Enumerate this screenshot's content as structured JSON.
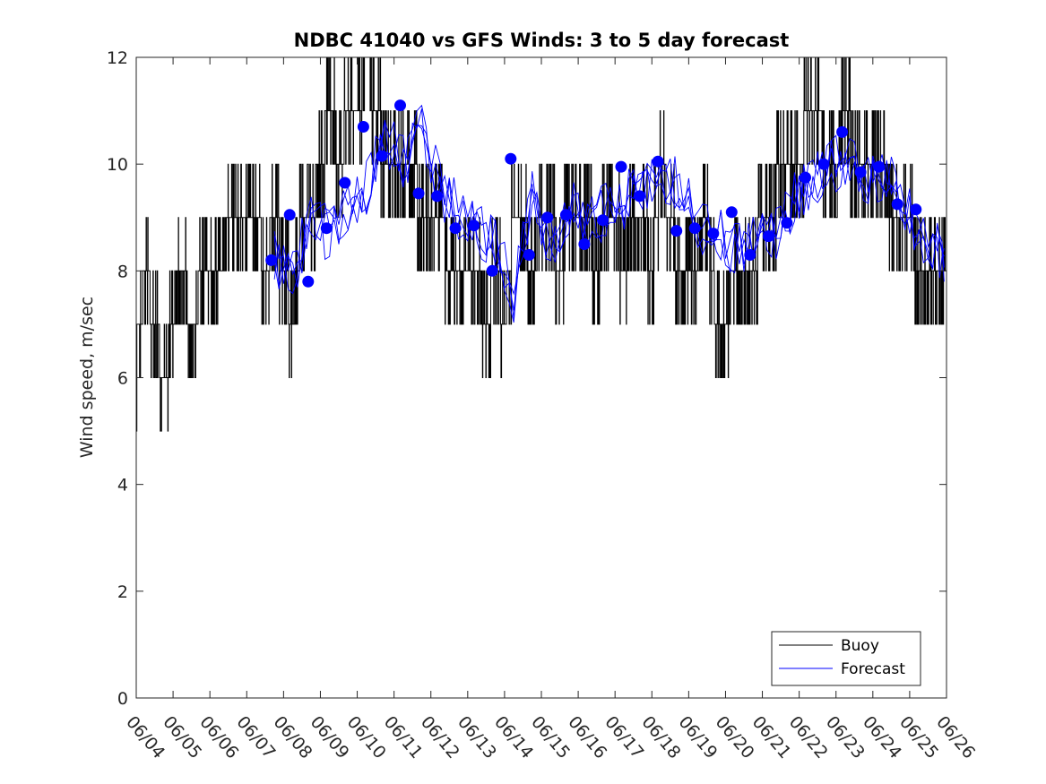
{
  "chart_data": {
    "type": "line",
    "title": "NDBC 41040 vs GFS Winds: 3 to 5 day forecast",
    "xlabel": "",
    "ylabel": "Wind speed, m/sec",
    "xlim": [
      "06/04",
      "06/26"
    ],
    "ylim": [
      0,
      12
    ],
    "x_tick_labels": [
      "06/04",
      "06/05",
      "06/06",
      "06/07",
      "06/08",
      "06/09",
      "06/10",
      "06/11",
      "06/12",
      "06/13",
      "06/14",
      "06/15",
      "06/16",
      "06/17",
      "06/18",
      "06/19",
      "06/20",
      "06/21",
      "06/22",
      "06/23",
      "06/24",
      "06/25",
      "06/26"
    ],
    "y_ticks": [
      0,
      2,
      4,
      6,
      8,
      10,
      12
    ],
    "grid": false,
    "legend": {
      "position": "bottom-right",
      "entries": [
        "Buoy",
        "Forecast"
      ]
    },
    "colors": {
      "buoy": "#000000",
      "forecast": "#0000ff",
      "markers": "#0000ff"
    },
    "series": [
      {
        "name": "Buoy",
        "style": "step-line",
        "x": [
          "06/04 00:00",
          "06/04 06:00",
          "06/04 12:00",
          "06/04 18:00",
          "06/05 00:00",
          "06/05 06:00",
          "06/05 12:00",
          "06/05 18:00",
          "06/06 00:00",
          "06/06 06:00",
          "06/06 12:00",
          "06/06 18:00",
          "06/07 00:00",
          "06/07 06:00",
          "06/07 12:00",
          "06/07 18:00",
          "06/08 00:00",
          "06/08 06:00",
          "06/08 12:00",
          "06/08 18:00",
          "06/09 00:00",
          "06/09 06:00",
          "06/09 12:00",
          "06/09 18:00",
          "06/10 00:00",
          "06/10 06:00",
          "06/10 12:00",
          "06/10 18:00",
          "06/11 00:00",
          "06/11 06:00",
          "06/11 12:00",
          "06/11 18:00",
          "06/12 00:00",
          "06/12 06:00",
          "06/12 12:00",
          "06/12 18:00",
          "06/13 00:00",
          "06/13 06:00",
          "06/13 12:00",
          "06/13 18:00",
          "06/14 00:00",
          "06/14 06:00",
          "06/14 12:00",
          "06/14 18:00",
          "06/15 00:00",
          "06/15 06:00",
          "06/15 12:00",
          "06/15 18:00",
          "06/16 00:00",
          "06/16 06:00",
          "06/16 12:00",
          "06/16 18:00",
          "06/17 00:00",
          "06/17 06:00",
          "06/17 12:00",
          "06/17 18:00",
          "06/18 00:00",
          "06/18 06:00",
          "06/18 12:00",
          "06/18 18:00",
          "06/19 00:00",
          "06/19 06:00",
          "06/19 12:00",
          "06/19 18:00",
          "06/20 00:00",
          "06/20 06:00",
          "06/20 12:00",
          "06/20 18:00",
          "06/21 00:00",
          "06/21 06:00",
          "06/21 12:00",
          "06/21 18:00",
          "06/22 00:00",
          "06/22 06:00",
          "06/22 12:00",
          "06/22 18:00",
          "06/23 00:00",
          "06/23 06:00",
          "06/23 12:00",
          "06/23 18:00",
          "06/24 00:00",
          "06/24 06:00",
          "06/24 12:00",
          "06/24 18:00",
          "06/25 00:00",
          "06/25 06:00",
          "06/25 12:00",
          "06/25 18:00",
          "06/26 00:00"
        ],
        "values": [
          6.4,
          8,
          7,
          6,
          7,
          8,
          7,
          8,
          8,
          8,
          9,
          9,
          9,
          9,
          8,
          9,
          8,
          7,
          9,
          9,
          10,
          11,
          10,
          11,
          11,
          12,
          11,
          10,
          10,
          10,
          10,
          9,
          9,
          9,
          8,
          8,
          8,
          8,
          7,
          8,
          7,
          9,
          9,
          8,
          9,
          9,
          8,
          9,
          9,
          9,
          8,
          9,
          9,
          8,
          9,
          9,
          8,
          10,
          9,
          8,
          8,
          8,
          9,
          7,
          7,
          8,
          8,
          8,
          9,
          9,
          10,
          10,
          10,
          11,
          11,
          10,
          10,
          11,
          10,
          10,
          10,
          10,
          9,
          9,
          9,
          8,
          8,
          8,
          8
        ]
      },
      {
        "name": "Forecast",
        "style": "multiple-thin-lines",
        "x": [
          "06/07 18:00",
          "06/08 06:00",
          "06/08 18:00",
          "06/09 06:00",
          "06/09 18:00",
          "06/10 06:00",
          "06/10 18:00",
          "06/11 06:00",
          "06/11 18:00",
          "06/12 06:00",
          "06/12 18:00",
          "06/13 06:00",
          "06/13 18:00",
          "06/14 06:00",
          "06/14 18:00",
          "06/15 06:00",
          "06/15 18:00",
          "06/16 06:00",
          "06/16 18:00",
          "06/17 06:00",
          "06/17 18:00",
          "06/18 06:00",
          "06/18 18:00",
          "06/19 06:00",
          "06/19 18:00",
          "06/20 06:00",
          "06/20 18:00",
          "06/21 06:00",
          "06/21 18:00",
          "06/22 06:00",
          "06/22 18:00",
          "06/23 06:00",
          "06/23 18:00",
          "06/24 06:00",
          "06/24 18:00",
          "06/25 06:00",
          "06/25 18:00",
          "06/26 00:00"
        ],
        "values": [
          8.2,
          7.9,
          9.1,
          8.6,
          9.2,
          9.6,
          10.5,
          10.0,
          10.8,
          9.5,
          9.1,
          8.8,
          8.5,
          7.5,
          9.4,
          8.5,
          9.2,
          8.9,
          9.1,
          9.3,
          9.6,
          9.6,
          9.6,
          8.8,
          8.8,
          8.4,
          8.6,
          8.6,
          9.2,
          9.6,
          10.0,
          10.0,
          9.8,
          9.8,
          9.5,
          8.6,
          8.4,
          7.8
        ]
      },
      {
        "name": "markers",
        "style": "marker",
        "x": [
          "06/07 16:00",
          "06/08 04:00",
          "06/08 16:00",
          "06/09 04:00",
          "06/09 16:00",
          "06/10 04:00",
          "06/10 16:00",
          "06/11 04:00",
          "06/11 16:00",
          "06/12 04:00",
          "06/12 16:00",
          "06/13 04:00",
          "06/13 16:00",
          "06/14 04:00",
          "06/14 16:00",
          "06/15 04:00",
          "06/15 16:00",
          "06/16 04:00",
          "06/16 16:00",
          "06/17 04:00",
          "06/17 16:00",
          "06/18 04:00",
          "06/18 16:00",
          "06/19 04:00",
          "06/19 16:00",
          "06/20 04:00",
          "06/20 16:00",
          "06/21 04:00",
          "06/21 16:00",
          "06/22 04:00",
          "06/22 16:00",
          "06/23 04:00",
          "06/23 16:00",
          "06/24 04:00",
          "06/24 16:00",
          "06/25 04:00"
        ],
        "values": [
          8.2,
          9.05,
          7.8,
          8.8,
          9.65,
          10.7,
          10.15,
          11.1,
          9.45,
          9.4,
          8.8,
          8.85,
          8.0,
          10.1,
          8.3,
          9.0,
          9.05,
          8.5,
          8.95,
          9.95,
          9.4,
          10.05,
          8.75,
          8.8,
          8.7,
          9.1,
          8.3,
          8.65,
          8.9,
          9.75,
          10.0,
          10.6,
          9.85,
          9.95,
          9.25,
          9.15
        ]
      }
    ]
  }
}
